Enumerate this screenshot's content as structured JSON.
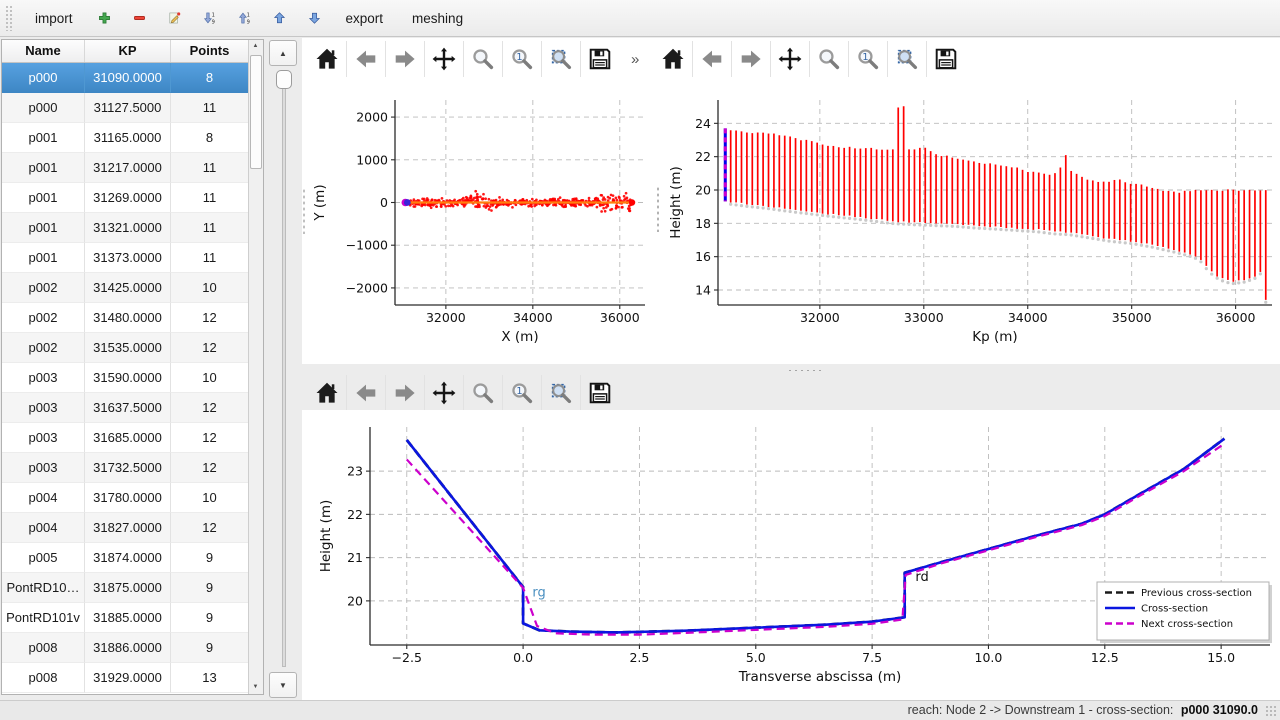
{
  "top_toolbar": {
    "import_label": "import",
    "export_label": "export",
    "meshing_label": "meshing",
    "icon_buttons": [
      "add",
      "remove",
      "edit",
      "sort-descending",
      "sort-ascending",
      "move-up",
      "move-down"
    ]
  },
  "table": {
    "headers": [
      "Name",
      "KP",
      "Points"
    ],
    "selected_row": 0,
    "selection_color": "#3f8dcb",
    "rows": [
      [
        "p000",
        "31090.0000",
        "8"
      ],
      [
        "p000",
        "31127.5000",
        "11"
      ],
      [
        "p001",
        "31165.0000",
        "8"
      ],
      [
        "p001",
        "31217.0000",
        "11"
      ],
      [
        "p001",
        "31269.0000",
        "11"
      ],
      [
        "p001",
        "31321.0000",
        "11"
      ],
      [
        "p001",
        "31373.0000",
        "11"
      ],
      [
        "p002",
        "31425.0000",
        "10"
      ],
      [
        "p002",
        "31480.0000",
        "12"
      ],
      [
        "p002",
        "31535.0000",
        "12"
      ],
      [
        "p003",
        "31590.0000",
        "10"
      ],
      [
        "p003",
        "31637.5000",
        "12"
      ],
      [
        "p003",
        "31685.0000",
        "12"
      ],
      [
        "p003",
        "31732.5000",
        "12"
      ],
      [
        "p004",
        "31780.0000",
        "10"
      ],
      [
        "p004",
        "31827.0000",
        "12"
      ],
      [
        "p005",
        "31874.0000",
        "9"
      ],
      [
        "PontRD10…",
        "31875.0000",
        "9"
      ],
      [
        "PontRD101v",
        "31885.0000",
        "9"
      ],
      [
        "p008",
        "31886.0000",
        "9"
      ],
      [
        "p008",
        "31929.0000",
        "13"
      ]
    ]
  },
  "nav_toolbar": {
    "buttons": [
      "home",
      "back",
      "forward",
      "pan",
      "zoom",
      "zoom-one",
      "zoom-rect",
      "save"
    ],
    "overflow_indicator": "»"
  },
  "chart_data": {
    "plan": {
      "type": "scatter",
      "xlabel": "X (m)",
      "ylabel": "Y (m)",
      "xlim": [
        30830,
        36580
      ],
      "ylim": [
        -2400,
        2400
      ],
      "xtick_vals": [
        32000,
        34000,
        36000
      ],
      "xtick_labels": [
        "32000",
        "34000",
        "36000"
      ],
      "ytick_vals": [
        -2000,
        -1000,
        0,
        1000,
        2000
      ],
      "ytick_labels": [
        "−2000",
        "−1000",
        "0",
        "1000",
        "2000"
      ],
      "grid": true,
      "series": {
        "river_points": {
          "color": "#ff0000",
          "x_start": 31130,
          "x_end": 36270,
          "y_center": 0,
          "y_spread": 65,
          "n": 520,
          "wide_zones": [
            [
              32450,
              33050
            ],
            [
              35550,
              36280
            ]
          ],
          "wide_factor": 2.1
        },
        "axis_line": {
          "color": "#ff7f0e",
          "y": 0,
          "x_start": 31130,
          "x_end": 36285
        },
        "end_point": {
          "x": 36282,
          "y": 0,
          "color": "#ff0000"
        },
        "start_point": {
          "x": 31090,
          "y": 0,
          "color": "#3a24d8",
          "ring_color": "#cc00cc"
        }
      }
    },
    "longitudinal": {
      "type": "range-bars",
      "xlabel": "Kp (m)",
      "ylabel": "Height (m)",
      "xlim": [
        31020,
        36350
      ],
      "ylim": [
        13.1,
        25.4
      ],
      "xtick_vals": [
        32000,
        33000,
        34000,
        35000,
        36000
      ],
      "xtick_labels": [
        "32000",
        "33000",
        "34000",
        "35000",
        "36000"
      ],
      "ytick_vals": [
        14,
        16,
        18,
        20,
        22,
        24
      ],
      "ytick_labels": [
        "14",
        "16",
        "18",
        "20",
        "22",
        "24"
      ],
      "grid": true,
      "bars": {
        "kp_start": 31142,
        "kp_step": 52,
        "kp_end": 36290,
        "color": "#ff0000",
        "width": 1.7
      },
      "bottom_marker_color": "#c9c9c9",
      "selected_bar": {
        "kp": 31090,
        "ymin": 19.32,
        "ymax": 23.7,
        "color": "#0000ee",
        "dash_color": "#cc00cc"
      },
      "top_envelope": [
        [
          31090,
          23.7
        ],
        [
          31200,
          23.52
        ],
        [
          31350,
          23.42
        ],
        [
          31500,
          23.38
        ],
        [
          31650,
          23.32
        ],
        [
          31750,
          23.1
        ],
        [
          31850,
          22.95
        ],
        [
          31870,
          23.05
        ],
        [
          31920,
          22.92
        ],
        [
          32000,
          22.88
        ],
        [
          32060,
          22.62
        ],
        [
          32200,
          22.58
        ],
        [
          32350,
          22.52
        ],
        [
          32500,
          22.5
        ],
        [
          32650,
          22.42
        ],
        [
          32702,
          22.4
        ],
        [
          32754,
          24.95
        ],
        [
          32806,
          25.0
        ],
        [
          32858,
          22.42
        ],
        [
          32950,
          22.48
        ],
        [
          33010,
          22.52
        ],
        [
          33060,
          22.3
        ],
        [
          33150,
          22.1
        ],
        [
          33300,
          21.92
        ],
        [
          33450,
          21.7
        ],
        [
          33600,
          21.58
        ],
        [
          33750,
          21.5
        ],
        [
          33900,
          21.32
        ],
        [
          34000,
          21.12
        ],
        [
          34100,
          21.05
        ],
        [
          34210,
          20.95
        ],
        [
          34262,
          21.05
        ],
        [
          34314,
          21.3
        ],
        [
          34366,
          22.05
        ],
        [
          34418,
          21.1
        ],
        [
          34500,
          20.85
        ],
        [
          34600,
          20.55
        ],
        [
          34700,
          20.45
        ],
        [
          34800,
          20.55
        ],
        [
          34880,
          20.65
        ],
        [
          34960,
          20.45
        ],
        [
          35100,
          20.28
        ],
        [
          35250,
          20.05
        ],
        [
          35350,
          19.92
        ],
        [
          35450,
          19.85
        ],
        [
          35550,
          19.95
        ],
        [
          35650,
          20.0
        ],
        [
          36290,
          20.0
        ]
      ],
      "bottom_envelope": [
        [
          31090,
          19.32
        ],
        [
          31300,
          19.15
        ],
        [
          31500,
          19.02
        ],
        [
          31700,
          18.85
        ],
        [
          31900,
          18.7
        ],
        [
          32100,
          18.55
        ],
        [
          32300,
          18.42
        ],
        [
          32500,
          18.28
        ],
        [
          32700,
          18.12
        ],
        [
          32900,
          18.05
        ],
        [
          33100,
          18.0
        ],
        [
          33300,
          17.95
        ],
        [
          33500,
          17.85
        ],
        [
          33700,
          17.78
        ],
        [
          33900,
          17.7
        ],
        [
          34100,
          17.62
        ],
        [
          34250,
          17.5
        ],
        [
          34400,
          17.45
        ],
        [
          34600,
          17.25
        ],
        [
          34800,
          17.05
        ],
        [
          35000,
          16.92
        ],
        [
          35200,
          16.7
        ],
        [
          35400,
          16.42
        ],
        [
          35550,
          16.18
        ],
        [
          35650,
          15.95
        ],
        [
          35720,
          15.4
        ],
        [
          35800,
          14.9
        ],
        [
          35900,
          14.6
        ],
        [
          35980,
          14.52
        ],
        [
          36080,
          14.6
        ],
        [
          36180,
          14.8
        ],
        [
          36238,
          15.1
        ],
        [
          36290,
          13.4
        ]
      ]
    },
    "cross_section": {
      "type": "line",
      "xlabel": "Transverse abscissa (m)",
      "ylabel": "Height (m)",
      "xlim": [
        -3.29,
        16.05
      ],
      "ylim": [
        18.98,
        24.02
      ],
      "xtick_vals": [
        -2.5,
        0,
        2.5,
        5,
        7.5,
        10,
        12.5,
        15
      ],
      "xtick_labels": [
        "−2.5",
        "0.0",
        "2.5",
        "5.0",
        "7.5",
        "10.0",
        "12.5",
        "15.0"
      ],
      "ytick_vals": [
        20,
        21,
        22,
        23
      ],
      "ytick_labels": [
        "20",
        "21",
        "22",
        "23"
      ],
      "grid": true,
      "series": [
        {
          "name": "Previous cross-section",
          "color": "#1a1a1a",
          "dash": true,
          "width": 2.8,
          "points": [
            [
              -2.5,
              23.72
            ],
            [
              0.0,
              20.32
            ],
            [
              0.0,
              19.48
            ],
            [
              0.35,
              19.32
            ],
            [
              1.0,
              19.29
            ],
            [
              2.0,
              19.27
            ],
            [
              3.5,
              19.31
            ],
            [
              5.0,
              19.38
            ],
            [
              6.5,
              19.45
            ],
            [
              7.5,
              19.52
            ],
            [
              8.2,
              19.62
            ],
            [
              8.2,
              20.65
            ],
            [
              9.0,
              20.9
            ],
            [
              10.0,
              21.2
            ],
            [
              11.0,
              21.5
            ],
            [
              12.0,
              21.78
            ],
            [
              12.5,
              22.0
            ],
            [
              13.3,
              22.5
            ],
            [
              14.2,
              23.05
            ],
            [
              15.07,
              23.75
            ]
          ]
        },
        {
          "name": "Cross-section",
          "color": "#0a16e0",
          "dash": false,
          "width": 2.6,
          "points": [
            [
              -2.5,
              23.72
            ],
            [
              0.0,
              20.32
            ],
            [
              0.0,
              19.48
            ],
            [
              0.35,
              19.32
            ],
            [
              1.0,
              19.29
            ],
            [
              2.0,
              19.27
            ],
            [
              3.5,
              19.31
            ],
            [
              5.0,
              19.38
            ],
            [
              6.5,
              19.45
            ],
            [
              7.5,
              19.52
            ],
            [
              8.2,
              19.62
            ],
            [
              8.2,
              20.65
            ],
            [
              9.0,
              20.9
            ],
            [
              10.0,
              21.2
            ],
            [
              11.0,
              21.5
            ],
            [
              12.0,
              21.78
            ],
            [
              12.5,
              22.0
            ],
            [
              13.3,
              22.5
            ],
            [
              14.2,
              23.05
            ],
            [
              15.07,
              23.75
            ]
          ]
        },
        {
          "name": "Next cross-section",
          "color": "#cc00cc",
          "dash": true,
          "width": 2.2,
          "points": [
            [
              -2.5,
              23.27
            ],
            [
              0.0,
              20.3
            ],
            [
              0.3,
              19.42
            ],
            [
              0.7,
              19.25
            ],
            [
              1.5,
              19.22
            ],
            [
              2.5,
              19.22
            ],
            [
              3.5,
              19.26
            ],
            [
              5.0,
              19.33
            ],
            [
              6.5,
              19.4
            ],
            [
              7.5,
              19.47
            ],
            [
              8.15,
              19.57
            ],
            [
              8.22,
              20.6
            ],
            [
              9.0,
              20.87
            ],
            [
              10.0,
              21.17
            ],
            [
              11.0,
              21.47
            ],
            [
              12.0,
              21.75
            ],
            [
              12.5,
              21.96
            ],
            [
              13.3,
              22.46
            ],
            [
              14.2,
              23.0
            ],
            [
              15.05,
              23.62
            ]
          ]
        }
      ],
      "annotations": [
        {
          "text": "rg",
          "x": 0.07,
          "y": 20.1,
          "color": "#4a8fc0"
        },
        {
          "text": "rd",
          "x": 8.3,
          "y": 20.46,
          "color": "#111111"
        }
      ],
      "legend": {
        "position": "lower right",
        "entries": [
          "Previous cross-section",
          "Cross-section",
          "Next cross-section"
        ]
      }
    }
  },
  "status_bar": {
    "text": "reach: Node 2 -> Downstream 1 - cross-section: ",
    "highlight": "p000 31090.0"
  }
}
